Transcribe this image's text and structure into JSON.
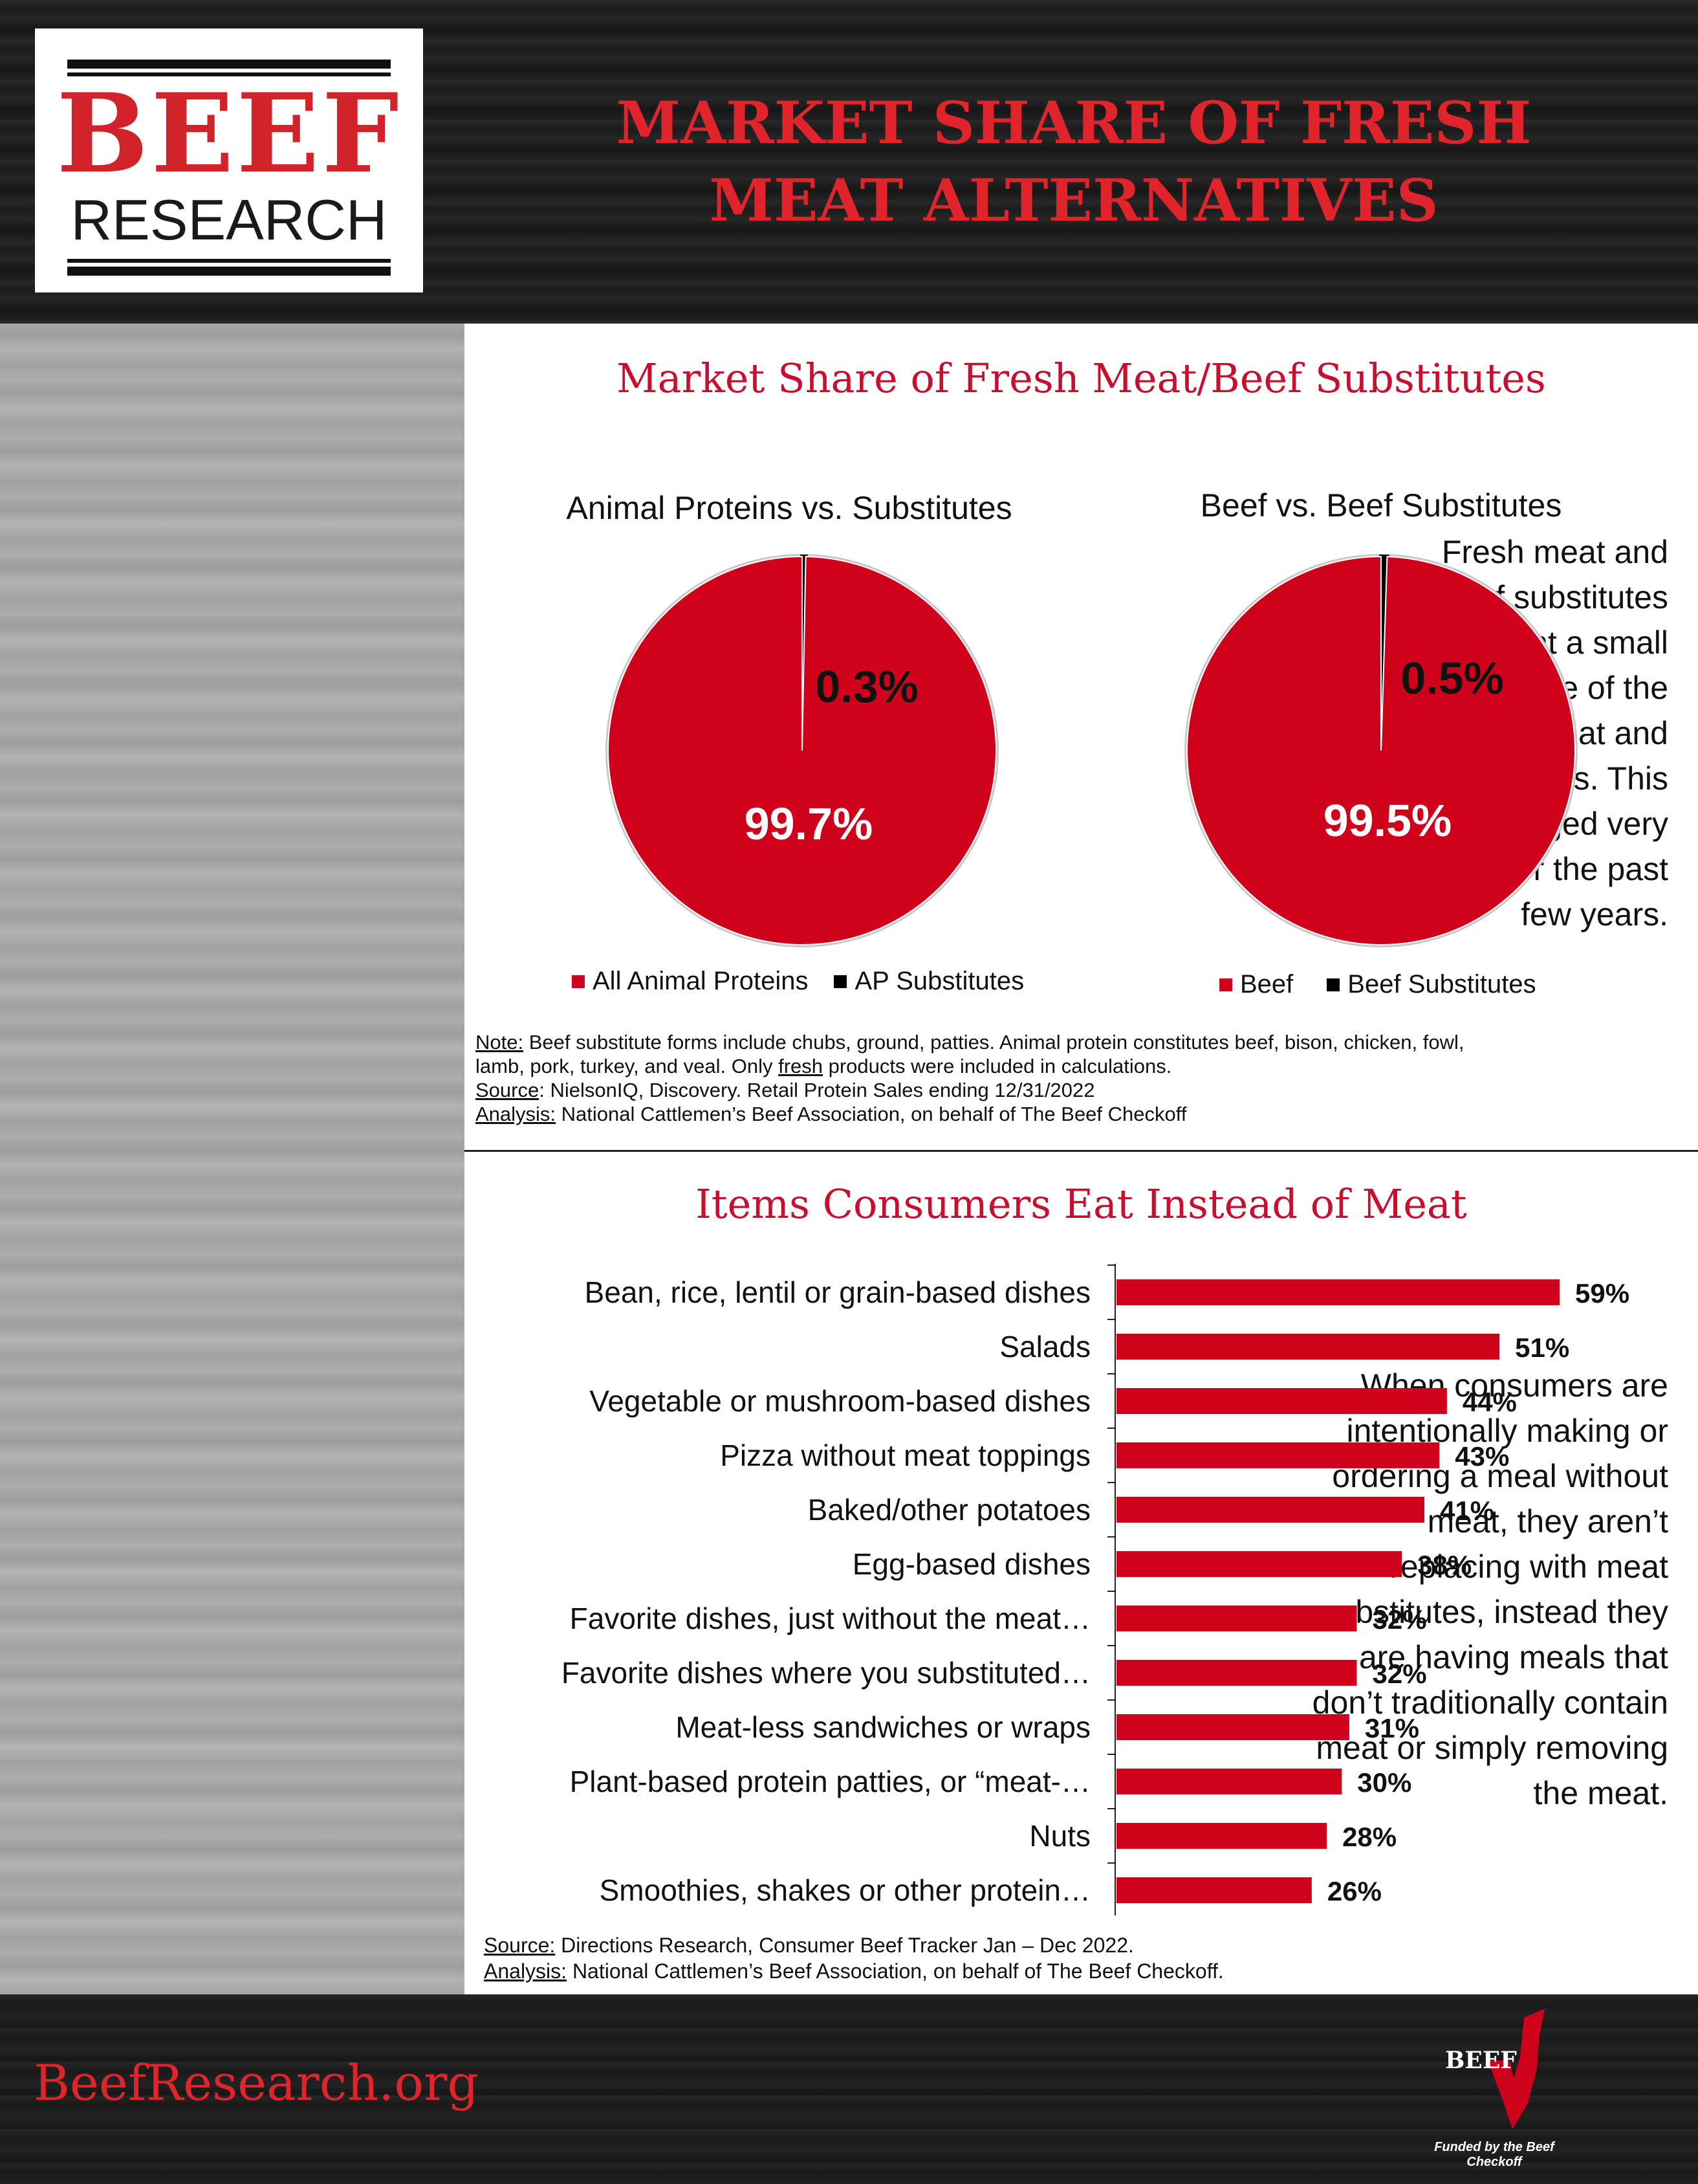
{
  "header": {
    "logo_top": "BEEF",
    "logo_bottom": "RESEARCH",
    "title_line1": "MARKET SHARE OF FRESH",
    "title_line2": "MEAT ALTERNATIVES"
  },
  "left_text_1": [
    "Fresh meat and",
    "beef substitutes",
    "represent a small",
    "percentage of the",
    "fresh meat and",
    "beef markets. This",
    "has changed very",
    "little over the past",
    "few years."
  ],
  "left_text_2": [
    "When consumers are",
    "intentionally making or",
    "ordering a meal without",
    "meat, they aren’t",
    "replacing with meat",
    "substitutes, instead they",
    "are having meals that",
    "don’t traditionally contain",
    "meat or simply removing",
    "the meat."
  ],
  "section1_title": "Market Share of Fresh Meat/Beef Substitutes",
  "section2_title": "Items Consumers Eat Instead of Meat",
  "colors": {
    "red": "#d0021b",
    "black": "#000000",
    "title_red": "#c8102e"
  },
  "chart_data": [
    {
      "type": "pie",
      "title": "Animal Proteins vs. Substitutes",
      "slices": [
        {
          "name": "All Animal Proteins",
          "value": 99.7,
          "label": "99.7%",
          "color": "#d0021b"
        },
        {
          "name": "AP Substitutes",
          "value": 0.3,
          "label": "0.3%",
          "color": "#000000"
        }
      ],
      "legend": "bottom"
    },
    {
      "type": "pie",
      "title": "Beef vs. Beef Substitutes",
      "slices": [
        {
          "name": "Beef",
          "value": 99.5,
          "label": "99.5%",
          "color": "#d0021b"
        },
        {
          "name": "Beef Substitutes",
          "value": 0.5,
          "label": "0.5%",
          "color": "#000000"
        }
      ],
      "legend": "bottom"
    },
    {
      "type": "bar",
      "orientation": "horizontal",
      "title": "Items Consumers Eat Instead of Meat",
      "categories": [
        "Bean, rice, lentil or grain-based dishes",
        "Salads",
        "Vegetable or mushroom-based dishes",
        "Pizza without meat toppings",
        "Baked/other potatoes",
        "Egg-based dishes",
        "Favorite dishes, just without the meat…",
        "Favorite dishes where you substituted…",
        "Meat-less sandwiches or wraps",
        "Plant-based protein patties, or “meat-…",
        "Nuts",
        "Smoothies, shakes or other protein…"
      ],
      "values": [
        59,
        51,
        44,
        43,
        41,
        38,
        32,
        32,
        31,
        30,
        28,
        26
      ],
      "labels": [
        "59%",
        "51%",
        "44%",
        "43%",
        "41%",
        "38%",
        "32%",
        "32%",
        "31%",
        "30%",
        "28%",
        "26%"
      ],
      "color": "#d0021b"
    }
  ],
  "note1": {
    "note_label": "Note:",
    "note_text": " Beef substitute forms include chubs, ground, patties. Animal protein constitutes beef, bison, chicken, fowl,",
    "note_text2a": "lamb, pork, turkey, and veal. Only ",
    "note_fresh": "fresh",
    "note_text2b": " products were included in calculations.",
    "source_label": "Source",
    "source_text": ": NielsonIQ, Discovery. Retail Protein Sales ending 12/31/2022",
    "analysis_label": "Analysis:",
    "analysis_text": " National Cattlemen’s Beef Association, on behalf of The Beef Checkoff"
  },
  "note2": {
    "source_label": "Source:",
    "source_text": " Directions Research, Consumer Beef Tracker Jan – Dec 2022.",
    "analysis_label": "Analysis:",
    "analysis_text": " National Cattlemen’s Beef Association, on behalf of The Beef Checkoff."
  },
  "footer": {
    "site": "BeefResearch.org",
    "checkoff_logo": "BEEF",
    "funded_by": "Funded by the Beef Checkoff"
  }
}
